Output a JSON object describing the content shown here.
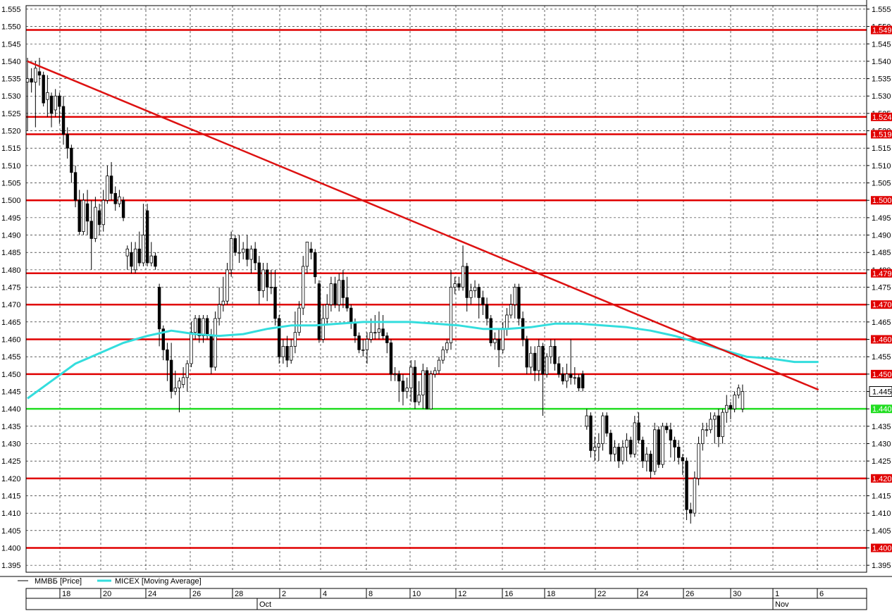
{
  "chart_data": {
    "type": "candlestick",
    "series": [
      {
        "name": "ММВБ [Price]",
        "color": "#000000"
      },
      {
        "name": "MICEX [Moving Average]",
        "color": "#33dddd"
      }
    ],
    "yaxis": {
      "min": 1.393,
      "max": 1.556,
      "step": 0.005,
      "ticks": [
        "1.395",
        "1.400",
        "1.405",
        "1.410",
        "1.415",
        "1.420",
        "1.425",
        "1.430",
        "1.435",
        "1.440",
        "1.445",
        "1.450",
        "1.455",
        "1.460",
        "1.465",
        "1.470",
        "1.475",
        "1.480",
        "1.485",
        "1.490",
        "1.495",
        "1.500",
        "1.505",
        "1.510",
        "1.515",
        "1.520",
        "1.525",
        "1.530",
        "1.535",
        "1.540",
        "1.545",
        "1.550",
        "1.555"
      ]
    },
    "grid": true,
    "x_day_ticks": [
      "18",
      "20",
      "24",
      "26",
      "28",
      "2",
      "4",
      "8",
      "10",
      "12",
      "16",
      "18",
      "22",
      "24",
      "26",
      "30",
      "1",
      "6"
    ],
    "x_month_labels": [
      "Oct",
      "Nov"
    ],
    "last_price": 1.445,
    "last_price_label": "1.445",
    "horizontal_levels": [
      {
        "value": 1.549,
        "label": "1.549",
        "color": "#e00000"
      },
      {
        "value": 1.524,
        "label": "1.524",
        "color": "#e00000"
      },
      {
        "value": 1.519,
        "label": "1.519",
        "color": "#e00000"
      },
      {
        "value": 1.5,
        "label": "1.500",
        "color": "#e00000"
      },
      {
        "value": 1.479,
        "label": "1.479",
        "color": "#e00000"
      },
      {
        "value": 1.47,
        "label": "1.470",
        "color": "#e00000"
      },
      {
        "value": 1.46,
        "label": "1.460",
        "color": "#e00000"
      },
      {
        "value": 1.45,
        "label": "1.450",
        "color": "#e00000"
      },
      {
        "value": 1.44,
        "label": "1.440",
        "color": "#22dd22"
      },
      {
        "value": 1.42,
        "label": "1.420",
        "color": "#e00000"
      },
      {
        "value": 1.4,
        "label": "1.400",
        "color": "#e00000"
      }
    ],
    "trendline": {
      "from": [
        0,
        1.54
      ],
      "to": [
        198,
        1.4455
      ],
      "color": "#dd1111"
    },
    "moving_average": [
      [
        0,
        1.443
      ],
      [
        6,
        1.448
      ],
      [
        12,
        1.453
      ],
      [
        18,
        1.456
      ],
      [
        24,
        1.459
      ],
      [
        30,
        1.461
      ],
      [
        36,
        1.4625
      ],
      [
        42,
        1.4615
      ],
      [
        48,
        1.461
      ],
      [
        54,
        1.4615
      ],
      [
        60,
        1.463
      ],
      [
        66,
        1.464
      ],
      [
        72,
        1.464
      ],
      [
        78,
        1.4645
      ],
      [
        84,
        1.465
      ],
      [
        90,
        1.465
      ],
      [
        96,
        1.465
      ],
      [
        102,
        1.4645
      ],
      [
        108,
        1.464
      ],
      [
        114,
        1.463
      ],
      [
        120,
        1.463
      ],
      [
        126,
        1.4635
      ],
      [
        132,
        1.4645
      ],
      [
        138,
        1.4645
      ],
      [
        144,
        1.464
      ],
      [
        150,
        1.4635
      ],
      [
        156,
        1.4625
      ],
      [
        162,
        1.461
      ],
      [
        168,
        1.459
      ],
      [
        174,
        1.457
      ],
      [
        180,
        1.455
      ],
      [
        186,
        1.4545
      ],
      [
        192,
        1.4535
      ],
      [
        198,
        1.4535
      ]
    ],
    "candles": [
      [
        1.534,
        1.535,
        1.541,
        1.52
      ],
      [
        1.535,
        1.534,
        1.538,
        1.531
      ],
      [
        1.534,
        1.538,
        1.54,
        1.521
      ],
      [
        1.537,
        1.536,
        1.541,
        1.533
      ],
      [
        1.536,
        1.528,
        1.537,
        1.527
      ],
      [
        1.529,
        1.531,
        1.536,
        1.524
      ],
      [
        1.53,
        1.525,
        1.531,
        1.521
      ],
      [
        1.526,
        1.53,
        1.532,
        1.524
      ],
      [
        1.53,
        1.527,
        1.531,
        1.522
      ],
      [
        1.527,
        1.519,
        1.53,
        1.516
      ],
      [
        1.519,
        1.515,
        1.521,
        1.512
      ],
      [
        1.515,
        1.508,
        1.516,
        1.505
      ],
      [
        1.508,
        1.5,
        1.51,
        1.498
      ],
      [
        1.5,
        1.491,
        1.503,
        1.49
      ],
      [
        1.491,
        1.5,
        1.502,
        1.49
      ],
      [
        1.499,
        1.494,
        1.503,
        1.49
      ],
      [
        1.494,
        1.489,
        1.5,
        1.48
      ],
      [
        1.489,
        1.498,
        1.501,
        1.488
      ],
      [
        1.497,
        1.493,
        1.499,
        1.49
      ],
      [
        1.493,
        1.5,
        1.503,
        1.491
      ],
      [
        1.5,
        1.507,
        1.51,
        1.499
      ],
      [
        1.507,
        1.502,
        1.511,
        1.5
      ],
      [
        1.502,
        1.499,
        1.504,
        1.497
      ],
      [
        1.499,
        1.501,
        1.503,
        1.498
      ],
      [
        1.5,
        1.495,
        1.501,
        1.494
      ],
      [
        1.484,
        1.486,
        1.487,
        1.48
      ],
      [
        1.485,
        1.481,
        1.488,
        1.479
      ],
      [
        1.48,
        1.486,
        1.488,
        1.479
      ],
      [
        1.486,
        1.482,
        1.491,
        1.481
      ],
      [
        1.482,
        1.49,
        1.499,
        1.481
      ],
      [
        1.497,
        1.482,
        1.499,
        1.481
      ],
      [
        1.482,
        1.484,
        1.488,
        1.481
      ],
      [
        1.484,
        1.481,
        1.485,
        1.48
      ],
      [
        1.475,
        1.463,
        1.476,
        1.458
      ],
      [
        1.463,
        1.457,
        1.464,
        1.454
      ],
      [
        1.457,
        1.454,
        1.459,
        1.448
      ],
      [
        1.454,
        1.445,
        1.459,
        1.443
      ],
      [
        1.445,
        1.446,
        1.451,
        1.444
      ],
      [
        1.446,
        1.448,
        1.449,
        1.439
      ],
      [
        1.447,
        1.449,
        1.452,
        1.446
      ],
      [
        1.449,
        1.453,
        1.454,
        1.445
      ],
      [
        1.453,
        1.462,
        1.465,
        1.452
      ],
      [
        1.462,
        1.466,
        1.467,
        1.46
      ],
      [
        1.466,
        1.461,
        1.467,
        1.459
      ],
      [
        1.461,
        1.466,
        1.467,
        1.459
      ],
      [
        1.466,
        1.461,
        1.467,
        1.46
      ],
      [
        1.461,
        1.452,
        1.463,
        1.45
      ],
      [
        1.452,
        1.466,
        1.468,
        1.451
      ],
      [
        1.466,
        1.47,
        1.475,
        1.464
      ],
      [
        1.47,
        1.471,
        1.478,
        1.468
      ],
      [
        1.471,
        1.48,
        1.482,
        1.47
      ],
      [
        1.48,
        1.489,
        1.491,
        1.478
      ],
      [
        1.489,
        1.485,
        1.49,
        1.484
      ],
      [
        1.485,
        1.485,
        1.49,
        1.482
      ],
      [
        1.485,
        1.486,
        1.488,
        1.483
      ],
      [
        1.486,
        1.483,
        1.49,
        1.481
      ],
      [
        1.483,
        1.486,
        1.487,
        1.479
      ],
      [
        1.486,
        1.482,
        1.488,
        1.48
      ],
      [
        1.482,
        1.474,
        1.484,
        1.47
      ],
      [
        1.474,
        1.48,
        1.482,
        1.472
      ],
      [
        1.48,
        1.475,
        1.482,
        1.471
      ],
      [
        1.475,
        1.475,
        1.48,
        1.473
      ],
      [
        1.475,
        1.466,
        1.48,
        1.464
      ],
      [
        1.466,
        1.455,
        1.467,
        1.453
      ],
      [
        1.455,
        1.458,
        1.46,
        1.453
      ],
      [
        1.458,
        1.454,
        1.461,
        1.452
      ],
      [
        1.454,
        1.458,
        1.46,
        1.453
      ],
      [
        1.458,
        1.462,
        1.468,
        1.456
      ],
      [
        1.462,
        1.469,
        1.471,
        1.461
      ],
      [
        1.469,
        1.481,
        1.484,
        1.467
      ],
      [
        1.481,
        1.488,
        1.488,
        1.479
      ],
      [
        1.486,
        1.485,
        1.488,
        1.483
      ],
      [
        1.485,
        1.478,
        1.486,
        1.476
      ],
      [
        1.476,
        1.46,
        1.477,
        1.459
      ],
      [
        1.46,
        1.466,
        1.47,
        1.459
      ],
      [
        1.466,
        1.47,
        1.473,
        1.464
      ],
      [
        1.47,
        1.476,
        1.478,
        1.468
      ],
      [
        1.476,
        1.47,
        1.478,
        1.469
      ],
      [
        1.47,
        1.477,
        1.479,
        1.468
      ],
      [
        1.477,
        1.472,
        1.48,
        1.469
      ],
      [
        1.472,
        1.469,
        1.478,
        1.468
      ],
      [
        1.469,
        1.465,
        1.47,
        1.463
      ],
      [
        1.465,
        1.461,
        1.466,
        1.459
      ],
      [
        1.461,
        1.457,
        1.462,
        1.456
      ],
      [
        1.457,
        1.457,
        1.46,
        1.455
      ],
      [
        1.457,
        1.46,
        1.462,
        1.453
      ],
      [
        1.46,
        1.462,
        1.466,
        1.459
      ],
      [
        1.462,
        1.462,
        1.467,
        1.46
      ],
      [
        1.462,
        1.463,
        1.468,
        1.46
      ],
      [
        1.463,
        1.461,
        1.467,
        1.46
      ],
      [
        1.461,
        1.459,
        1.462,
        1.456
      ],
      [
        1.459,
        1.45,
        1.46,
        1.448
      ],
      [
        1.45,
        1.45,
        1.452,
        1.448
      ],
      [
        1.45,
        1.448,
        1.451,
        1.442
      ],
      [
        1.448,
        1.445,
        1.45,
        1.441
      ],
      [
        1.445,
        1.446,
        1.449,
        1.443
      ],
      [
        1.446,
        1.452,
        1.454,
        1.442
      ],
      [
        1.452,
        1.442,
        1.454,
        1.44
      ],
      [
        1.442,
        1.444,
        1.448,
        1.441
      ],
      [
        1.444,
        1.451,
        1.453,
        1.44
      ],
      [
        1.451,
        1.44,
        1.452,
        1.44
      ],
      [
        1.44,
        1.45,
        1.451,
        1.44
      ],
      [
        1.45,
        1.451,
        1.452,
        1.449
      ],
      [
        1.451,
        1.454,
        1.455,
        1.45
      ],
      [
        1.454,
        1.457,
        1.458,
        1.453
      ],
      [
        1.457,
        1.459,
        1.46,
        1.456
      ],
      [
        1.459,
        1.475,
        1.48,
        1.457
      ],
      [
        1.475,
        1.476,
        1.478,
        1.473
      ],
      [
        1.476,
        1.475,
        1.478,
        1.474
      ],
      [
        1.475,
        1.481,
        1.487,
        1.474
      ],
      [
        1.481,
        1.472,
        1.482,
        1.468
      ],
      [
        1.472,
        1.474,
        1.476,
        1.47
      ],
      [
        1.474,
        1.475,
        1.477,
        1.472
      ],
      [
        1.475,
        1.472,
        1.476,
        1.466
      ],
      [
        1.472,
        1.47,
        1.474,
        1.467
      ],
      [
        1.47,
        1.466,
        1.472,
        1.464
      ],
      [
        1.466,
        1.459,
        1.467,
        1.458
      ],
      [
        1.459,
        1.46,
        1.462,
        1.457
      ],
      [
        1.46,
        1.457,
        1.463,
        1.452
      ],
      [
        1.457,
        1.463,
        1.465,
        1.456
      ],
      [
        1.463,
        1.467,
        1.469,
        1.461
      ],
      [
        1.467,
        1.47,
        1.473,
        1.466
      ],
      [
        1.47,
        1.475,
        1.476,
        1.466
      ],
      [
        1.475,
        1.466,
        1.476,
        1.464
      ],
      [
        1.466,
        1.46,
        1.468,
        1.458
      ],
      [
        1.46,
        1.452,
        1.461,
        1.45
      ],
      [
        1.452,
        1.456,
        1.458,
        1.45
      ],
      [
        1.456,
        1.451,
        1.458,
        1.448
      ],
      [
        1.451,
        1.458,
        1.46,
        1.448
      ],
      [
        1.458,
        1.45,
        1.459,
        1.438
      ],
      [
        1.45,
        1.455,
        1.456,
        1.449
      ],
      [
        1.455,
        1.458,
        1.46,
        1.453
      ],
      [
        1.458,
        1.453,
        1.46,
        1.451
      ],
      [
        1.453,
        1.45,
        1.455,
        1.449
      ],
      [
        1.45,
        1.448,
        1.452,
        1.447
      ],
      [
        1.448,
        1.45,
        1.453,
        1.446
      ],
      [
        1.45,
        1.449,
        1.46,
        1.447
      ],
      [
        1.449,
        1.449,
        1.452,
        1.447
      ],
      [
        1.449,
        1.446,
        1.45,
        1.445
      ],
      [
        1.45,
        1.446,
        1.451,
        1.445
      ],
      [
        1.435,
        1.438,
        1.44,
        1.434
      ],
      [
        1.438,
        1.428,
        1.439,
        1.426
      ],
      [
        1.428,
        1.429,
        1.432,
        1.425
      ],
      [
        1.429,
        1.43,
        1.433,
        1.425
      ],
      [
        1.43,
        1.438,
        1.439,
        1.428
      ],
      [
        1.438,
        1.433,
        1.439,
        1.432
      ],
      [
        1.433,
        1.427,
        1.434,
        1.425
      ],
      [
        1.427,
        1.429,
        1.431,
        1.425
      ],
      [
        1.429,
        1.425,
        1.43,
        1.423
      ],
      [
        1.425,
        1.429,
        1.431,
        1.424
      ],
      [
        1.429,
        1.431,
        1.433,
        1.425
      ],
      [
        1.431,
        1.427,
        1.432,
        1.426
      ],
      [
        1.427,
        1.436,
        1.438,
        1.426
      ],
      [
        1.436,
        1.431,
        1.439,
        1.43
      ],
      [
        1.431,
        1.425,
        1.432,
        1.423
      ],
      [
        1.425,
        1.427,
        1.429,
        1.422
      ],
      [
        1.427,
        1.422,
        1.428,
        1.42
      ],
      [
        1.422,
        1.434,
        1.436,
        1.421
      ],
      [
        1.434,
        1.424,
        1.435,
        1.423
      ],
      [
        1.424,
        1.435,
        1.436,
        1.423
      ],
      [
        1.435,
        1.434,
        1.436,
        1.433
      ],
      [
        1.434,
        1.431,
        1.436,
        1.426
      ],
      [
        1.431,
        1.429,
        1.432,
        1.425
      ],
      [
        1.429,
        1.426,
        1.431,
        1.424
      ],
      [
        1.426,
        1.425,
        1.427,
        1.421
      ],
      [
        1.425,
        1.411,
        1.426,
        1.408
      ],
      [
        1.411,
        1.41,
        1.413,
        1.407
      ],
      [
        1.41,
        1.42,
        1.422,
        1.409
      ],
      [
        1.42,
        1.43,
        1.432,
        1.418
      ],
      [
        1.43,
        1.434,
        1.436,
        1.428
      ],
      [
        1.434,
        1.434,
        1.436,
        1.432
      ],
      [
        1.434,
        1.437,
        1.439,
        1.433
      ],
      [
        1.437,
        1.438,
        1.439,
        1.43
      ],
      [
        1.438,
        1.432,
        1.44,
        1.429
      ],
      [
        1.432,
        1.439,
        1.44,
        1.43
      ],
      [
        1.439,
        1.441,
        1.444,
        1.436
      ],
      [
        1.441,
        1.44,
        1.442,
        1.437
      ],
      [
        1.44,
        1.444,
        1.445,
        1.439
      ],
      [
        1.444,
        1.446,
        1.447,
        1.443
      ],
      [
        1.44,
        1.445,
        1.447,
        1.439
      ]
    ]
  }
}
